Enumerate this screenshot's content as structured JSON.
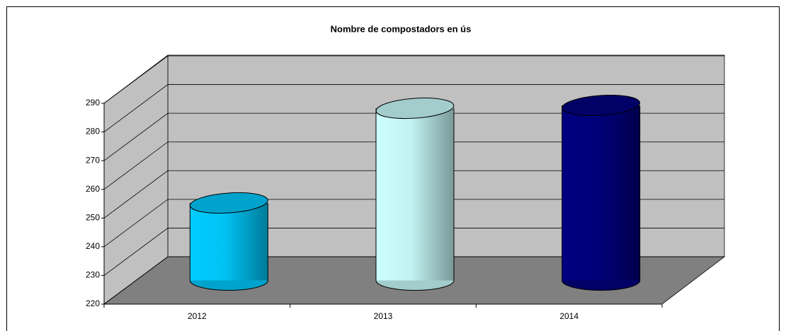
{
  "chart_data": {
    "type": "bar",
    "title": "Nombre de compostadors en ús",
    "categories": [
      "2012",
      "2013",
      "2014"
    ],
    "values": [
      247,
      280,
      281
    ],
    "colors": [
      "#00ccff",
      "#ccffff",
      "#000080"
    ],
    "ylim": [
      220,
      290
    ],
    "yticks": [
      220,
      230,
      240,
      250,
      260,
      270,
      280,
      290
    ],
    "grid": true
  }
}
